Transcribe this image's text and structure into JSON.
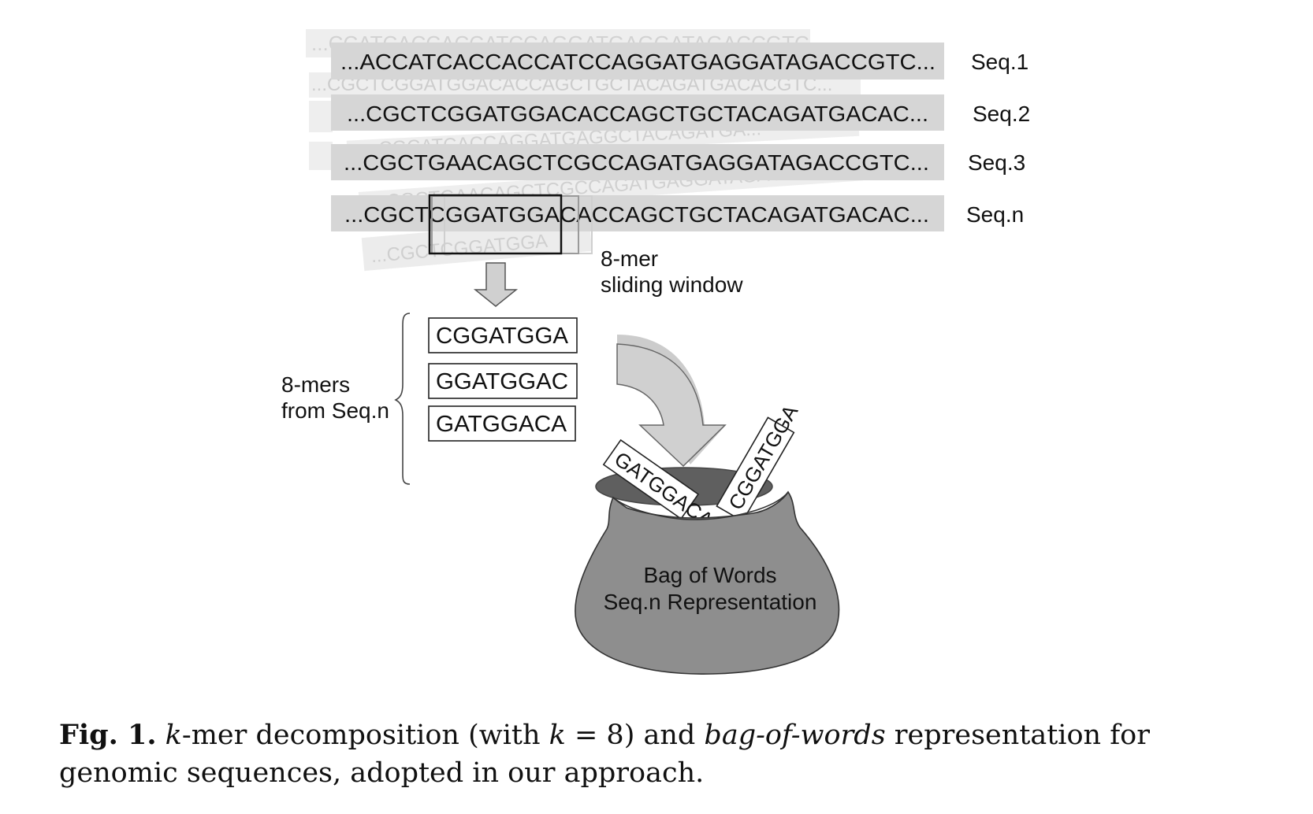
{
  "figure": {
    "sequences": [
      {
        "text": "...ACCATCACCACCATCCAGGATGAGGATAGACCGTC...",
        "label": "Seq.1"
      },
      {
        "text": "...CGCTCGGATGGACACCAGCTGCTACAGATGACAC...",
        "label": "Seq.2"
      },
      {
        "text": "...CGCTGAACAGCTCGCCAGATGAGGATAGACCGTC...",
        "label": "Seq.3"
      },
      {
        "text": "...CGCTCGGATGGACACCAGCTGCTACAGATGACAC...",
        "label": "Seq.n"
      }
    ],
    "ghost_texts": [
      "...CCATCACCACCATCCAGGATGAGGATAGACCGTC...",
      "...CGCTCGGATGGACACCAGCTGCTACAGATGACACGTC...",
      "...CGCATCACCAGGATGAGGCTACAGATGA...",
      "...CGCTGAACAGCTCGCCAGATGAGGATAGACCGACAC...",
      "...CGCTCGGATGGA"
    ],
    "window_label_line1": "8-mer",
    "window_label_line2": "sliding window",
    "kmers_label_line1": "8-mers",
    "kmers_label_line2": "from Seq.n",
    "kmers": [
      "CGGATGGA",
      "GGATGGAC",
      "GATGGACA"
    ],
    "bag_label_line1": "Bag of Words",
    "bag_label_line2": "Seq.n Representation",
    "bag_card_left": "GATGGACA",
    "bag_card_right": "CGGATGGA"
  },
  "caption": {
    "label": "Fig. 1.",
    "k": "k",
    "part1": "-mer decomposition (with ",
    "k_eq": "k",
    "eq_value": " = 8) and ",
    "bag_phrase": "bag-of-words",
    "part2": " representation for genomic sequences, adopted in our approach."
  },
  "colors": {
    "seq_bar": "#d6d6d6",
    "ghost_bar": "#eeeeee",
    "ghost_text": "#c8c8c8",
    "arrow_fill": "#cfcfcf",
    "bag_fill": "#8e8e8e",
    "bag_inner": "#5f5f5f"
  }
}
